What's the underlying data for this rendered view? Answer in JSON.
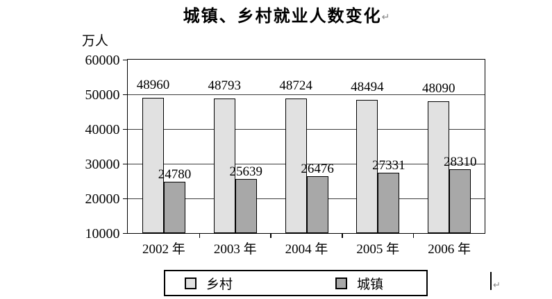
{
  "title": {
    "text": "城镇、乡村就业人数变化",
    "paragraph_mark": "↵"
  },
  "y_axis": {
    "unit_label": "万人"
  },
  "chart_data": {
    "type": "bar",
    "title": "城镇、乡村就业人数变化",
    "categories": [
      "2002 年",
      "2003 年",
      "2004 年",
      "2005 年",
      "2006 年"
    ],
    "series": [
      {
        "name": "乡村",
        "values": [
          48960,
          48793,
          48724,
          48494,
          48090
        ],
        "color": "#e1e1e1"
      },
      {
        "name": "城镇",
        "values": [
          24780,
          25639,
          26476,
          27331,
          28310
        ],
        "color": "#a8a8a8"
      }
    ],
    "xlabel": "",
    "ylabel": "万人",
    "ylim": [
      10000,
      60000
    ],
    "yticks": [
      60000,
      50000,
      40000,
      30000,
      20000,
      10000
    ],
    "grid": true,
    "data_labels": true,
    "legend_position": "bottom"
  },
  "legend": {
    "items": [
      {
        "label": "乡村",
        "color": "#e1e1e1"
      },
      {
        "label": "城镇",
        "color": "#a8a8a8"
      }
    ]
  },
  "cursor": {
    "paragraph_mark": "↵"
  }
}
